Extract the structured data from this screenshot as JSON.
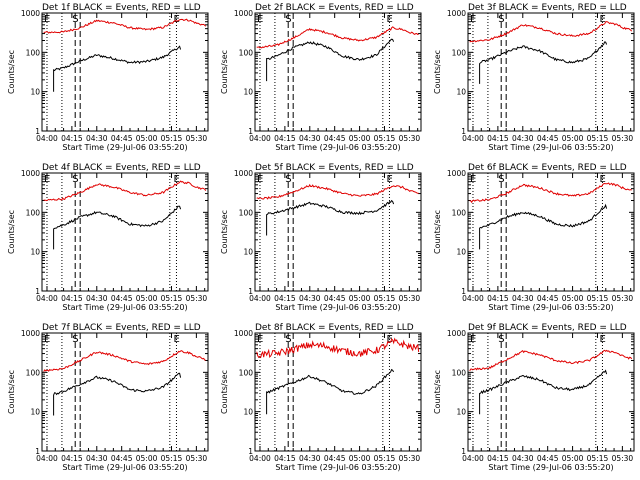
{
  "figure": {
    "time_ticks": [
      "04:00",
      "04:15",
      "04:30",
      "04:45",
      "05:00",
      "05:15",
      "05:30"
    ],
    "y_ticks": [
      "1",
      "10",
      "100",
      "1000"
    ],
    "xlabel": "Start Time (29-Jul-06 03:55:20)",
    "ylabel": "Counts/sec",
    "colors": {
      "events": "#000000",
      "lld": "#e00000"
    }
  },
  "chart_data": [
    {
      "type": "line",
      "title": "Det 1f BLACK = Events, RED = LLD",
      "xlabel": "Start Time (29-Jul-06 03:55:20)",
      "ylabel": "Counts/sec",
      "x_range": [
        "03:57",
        "05:37"
      ],
      "y_scale": "log",
      "ylim": [
        1,
        1000
      ],
      "markers": [
        {
          "label": "E",
          "time": "04:00",
          "style": "dotted"
        },
        {
          "label": "",
          "time": "04:09",
          "style": "dotted"
        },
        {
          "label": "S",
          "time": "04:17",
          "style": "dashed"
        },
        {
          "label": "",
          "time": "04:20",
          "style": "dashed"
        },
        {
          "label": "",
          "time": "05:14",
          "style": "dotted"
        },
        {
          "label": "E",
          "time": "05:18",
          "style": "dotted"
        }
      ],
      "series": [
        {
          "name": "Events",
          "color": "#000000",
          "start": "04:04",
          "end": "05:21",
          "x": [
            "04:04",
            "04:10",
            "04:20",
            "04:30",
            "04:40",
            "04:50",
            "05:00",
            "05:10",
            "05:20",
            "05:21"
          ],
          "y": [
            35,
            40,
            60,
            85,
            70,
            55,
            58,
            75,
            140,
            95
          ]
        },
        {
          "name": "LLD",
          "color": "#e00000",
          "start": "03:58",
          "end": "05:36",
          "x": [
            "03:58",
            "04:10",
            "04:20",
            "04:30",
            "04:40",
            "04:50",
            "05:00",
            "05:10",
            "05:20",
            "05:26",
            "05:30",
            "05:36"
          ],
          "y": [
            320,
            330,
            420,
            640,
            560,
            420,
            380,
            430,
            700,
            650,
            550,
            480
          ]
        }
      ]
    },
    {
      "type": "line",
      "title": "Det 2f BLACK = Events, RED = LLD",
      "xlabel": "Start Time (29-Jul-06 03:55:20)",
      "ylabel": "Counts/sec",
      "x_range": [
        "03:57",
        "05:37"
      ],
      "y_scale": "log",
      "ylim": [
        1,
        1000
      ],
      "markers": [
        {
          "label": "E",
          "time": "04:00",
          "style": "dotted"
        },
        {
          "label": "",
          "time": "04:09",
          "style": "dotted"
        },
        {
          "label": "S",
          "time": "04:17",
          "style": "dashed"
        },
        {
          "label": "",
          "time": "04:20",
          "style": "dashed"
        },
        {
          "label": "",
          "time": "05:14",
          "style": "dotted"
        },
        {
          "label": "E",
          "time": "05:18",
          "style": "dotted"
        }
      ],
      "series": [
        {
          "name": "Events",
          "color": "#000000",
          "start": "04:04",
          "end": "05:21",
          "x": [
            "04:04",
            "04:10",
            "04:20",
            "04:30",
            "04:40",
            "04:50",
            "05:00",
            "05:10",
            "05:20",
            "05:21"
          ],
          "y": [
            65,
            80,
            130,
            180,
            140,
            80,
            65,
            85,
            230,
            150
          ]
        },
        {
          "name": "LLD",
          "color": "#e00000",
          "start": "03:58",
          "end": "05:36",
          "x": [
            "03:58",
            "04:10",
            "04:20",
            "04:30",
            "04:40",
            "04:50",
            "05:00",
            "05:10",
            "05:20",
            "05:26",
            "05:30",
            "05:36"
          ],
          "y": [
            130,
            150,
            230,
            390,
            320,
            230,
            200,
            240,
            420,
            380,
            320,
            280
          ]
        }
      ]
    },
    {
      "type": "line",
      "title": "Det 3f BLACK = Events, RED = LLD",
      "xlabel": "Start Time (29-Jul-06 03:55:20)",
      "ylabel": "Counts/sec",
      "x_range": [
        "03:57",
        "05:37"
      ],
      "y_scale": "log",
      "ylim": [
        1,
        1000
      ],
      "markers": [
        {
          "label": "E",
          "time": "04:00",
          "style": "dotted"
        },
        {
          "label": "",
          "time": "04:09",
          "style": "dotted"
        },
        {
          "label": "S",
          "time": "04:17",
          "style": "dashed"
        },
        {
          "label": "",
          "time": "04:20",
          "style": "dashed"
        },
        {
          "label": "",
          "time": "05:14",
          "style": "dotted"
        },
        {
          "label": "E",
          "time": "05:18",
          "style": "dotted"
        }
      ],
      "series": [
        {
          "name": "Events",
          "color": "#000000",
          "start": "04:04",
          "end": "05:21",
          "x": [
            "04:04",
            "04:10",
            "04:20",
            "04:30",
            "04:40",
            "04:50",
            "05:00",
            "05:10",
            "05:20",
            "05:21"
          ],
          "y": [
            55,
            65,
            100,
            140,
            110,
            65,
            55,
            70,
            190,
            120
          ]
        },
        {
          "name": "LLD",
          "color": "#e00000",
          "start": "03:58",
          "end": "05:36",
          "x": [
            "03:58",
            "04:10",
            "04:20",
            "04:30",
            "04:40",
            "04:50",
            "05:00",
            "05:10",
            "05:20",
            "05:26",
            "05:30",
            "05:36"
          ],
          "y": [
            190,
            210,
            300,
            500,
            420,
            300,
            260,
            300,
            580,
            520,
            430,
            360
          ]
        }
      ]
    },
    {
      "type": "line",
      "title": "Det 4f BLACK = Events, RED = LLD",
      "xlabel": "Start Time (29-Jul-06 03:55:20)",
      "ylabel": "Counts/sec",
      "x_range": [
        "03:57",
        "05:37"
      ],
      "y_scale": "log",
      "ylim": [
        1,
        1000
      ],
      "markers": [
        {
          "label": "E",
          "time": "04:00",
          "style": "dotted"
        },
        {
          "label": "",
          "time": "04:09",
          "style": "dotted"
        },
        {
          "label": "S",
          "time": "04:17",
          "style": "dashed"
        },
        {
          "label": "",
          "time": "04:20",
          "style": "dashed"
        },
        {
          "label": "",
          "time": "05:14",
          "style": "dotted"
        },
        {
          "label": "E",
          "time": "05:18",
          "style": "dotted"
        }
      ],
      "series": [
        {
          "name": "Events",
          "color": "#000000",
          "start": "04:04",
          "end": "05:21",
          "x": [
            "04:04",
            "04:10",
            "04:20",
            "04:30",
            "04:40",
            "04:50",
            "05:00",
            "05:10",
            "05:20",
            "05:21"
          ],
          "y": [
            40,
            48,
            75,
            100,
            80,
            50,
            45,
            60,
            150,
            100
          ]
        },
        {
          "name": "LLD",
          "color": "#e00000",
          "start": "03:58",
          "end": "05:36",
          "x": [
            "03:58",
            "04:10",
            "04:20",
            "04:30",
            "04:40",
            "04:50",
            "05:00",
            "05:10",
            "05:20",
            "05:26",
            "05:30",
            "05:36"
          ],
          "y": [
            200,
            220,
            320,
            520,
            440,
            320,
            270,
            320,
            600,
            540,
            440,
            370
          ]
        }
      ]
    },
    {
      "type": "line",
      "title": "Det 5f BLACK = Events, RED = LLD",
      "xlabel": "Start Time (29-Jul-06 03:55:20)",
      "ylabel": "Counts/sec",
      "x_range": [
        "03:57",
        "05:37"
      ],
      "y_scale": "log",
      "ylim": [
        1,
        1000
      ],
      "markers": [
        {
          "label": "E",
          "time": "04:00",
          "style": "dotted"
        },
        {
          "label": "",
          "time": "04:09",
          "style": "dotted"
        },
        {
          "label": "S",
          "time": "04:17",
          "style": "dashed"
        },
        {
          "label": "",
          "time": "04:20",
          "style": "dashed"
        },
        {
          "label": "",
          "time": "05:14",
          "style": "dotted"
        },
        {
          "label": "E",
          "time": "05:18",
          "style": "dotted"
        }
      ],
      "series": [
        {
          "name": "Events",
          "color": "#000000",
          "start": "04:04",
          "end": "05:21",
          "x": [
            "04:04",
            "04:10",
            "04:20",
            "04:30",
            "04:40",
            "04:50",
            "05:00",
            "05:10",
            "05:20",
            "05:21"
          ],
          "y": [
            90,
            100,
            130,
            170,
            140,
            100,
            95,
            110,
            200,
            150
          ]
        },
        {
          "name": "LLD",
          "color": "#e00000",
          "start": "03:58",
          "end": "05:36",
          "x": [
            "03:58",
            "04:10",
            "04:20",
            "04:30",
            "04:40",
            "04:50",
            "05:00",
            "05:10",
            "05:20",
            "05:26",
            "05:30",
            "05:36"
          ],
          "y": [
            220,
            240,
            330,
            480,
            400,
            300,
            260,
            290,
            480,
            430,
            350,
            300
          ]
        }
      ]
    },
    {
      "type": "line",
      "title": "Det 6f BLACK = Events, RED = LLD",
      "xlabel": "Start Time (29-Jul-06 03:55:20)",
      "ylabel": "Counts/sec",
      "x_range": [
        "03:57",
        "05:37"
      ],
      "y_scale": "log",
      "ylim": [
        1,
        1000
      ],
      "markers": [
        {
          "label": "E",
          "time": "04:00",
          "style": "dotted"
        },
        {
          "label": "",
          "time": "04:09",
          "style": "dotted"
        },
        {
          "label": "S",
          "time": "04:17",
          "style": "dashed"
        },
        {
          "label": "",
          "time": "04:20",
          "style": "dashed"
        },
        {
          "label": "",
          "time": "05:14",
          "style": "dotted"
        },
        {
          "label": "E",
          "time": "05:18",
          "style": "dotted"
        }
      ],
      "series": [
        {
          "name": "Events",
          "color": "#000000",
          "start": "04:04",
          "end": "05:21",
          "x": [
            "04:04",
            "04:10",
            "04:20",
            "04:30",
            "04:40",
            "04:50",
            "05:00",
            "05:10",
            "05:20",
            "05:21"
          ],
          "y": [
            40,
            48,
            75,
            100,
            80,
            50,
            45,
            60,
            150,
            100
          ]
        },
        {
          "name": "LLD",
          "color": "#e00000",
          "start": "03:58",
          "end": "05:36",
          "x": [
            "03:58",
            "04:10",
            "04:20",
            "04:30",
            "04:40",
            "04:50",
            "05:00",
            "05:10",
            "05:20",
            "05:26",
            "05:30",
            "05:36"
          ],
          "y": [
            190,
            210,
            300,
            500,
            420,
            300,
            260,
            300,
            560,
            500,
            420,
            350
          ]
        }
      ]
    },
    {
      "type": "line",
      "title": "Det 7f BLACK = Events, RED = LLD",
      "xlabel": "Start Time (29-Jul-06 03:55:20)",
      "ylabel": "Counts/sec",
      "x_range": [
        "03:57",
        "05:37"
      ],
      "y_scale": "log",
      "ylim": [
        1,
        1000
      ],
      "markers": [
        {
          "label": "E",
          "time": "04:00",
          "style": "dotted"
        },
        {
          "label": "",
          "time": "04:09",
          "style": "dotted"
        },
        {
          "label": "S",
          "time": "04:17",
          "style": "dashed"
        },
        {
          "label": "",
          "time": "04:20",
          "style": "dashed"
        },
        {
          "label": "",
          "time": "05:14",
          "style": "dotted"
        },
        {
          "label": "E",
          "time": "05:18",
          "style": "dotted"
        }
      ],
      "series": [
        {
          "name": "Events",
          "color": "#000000",
          "start": "04:04",
          "end": "05:21",
          "x": [
            "04:04",
            "04:10",
            "04:20",
            "04:30",
            "04:40",
            "04:50",
            "05:00",
            "05:10",
            "05:20",
            "05:21"
          ],
          "y": [
            28,
            33,
            50,
            75,
            60,
            36,
            33,
            42,
            95,
            65
          ]
        },
        {
          "name": "LLD",
          "color": "#e00000",
          "start": "03:58",
          "end": "05:36",
          "x": [
            "03:58",
            "04:10",
            "04:20",
            "04:30",
            "04:40",
            "04:50",
            "05:00",
            "05:10",
            "05:20",
            "05:26",
            "05:30",
            "05:36"
          ],
          "y": [
            110,
            125,
            200,
            330,
            270,
            190,
            160,
            190,
            350,
            310,
            250,
            210
          ]
        }
      ]
    },
    {
      "type": "line",
      "title": "Det 8f BLACK = Events, RED = LLD",
      "xlabel": "Start Time (29-Jul-06 03:55:20)",
      "ylabel": "Counts/sec",
      "x_range": [
        "03:57",
        "05:37"
      ],
      "y_scale": "log",
      "ylim": [
        1,
        1000
      ],
      "markers": [
        {
          "label": "E",
          "time": "04:00",
          "style": "dotted"
        },
        {
          "label": "",
          "time": "04:09",
          "style": "dotted"
        },
        {
          "label": "S",
          "time": "04:17",
          "style": "dashed"
        },
        {
          "label": "",
          "time": "04:20",
          "style": "dashed"
        },
        {
          "label": "",
          "time": "05:14",
          "style": "dotted"
        },
        {
          "label": "E",
          "time": "05:18",
          "style": "dotted"
        }
      ],
      "series": [
        {
          "name": "Events",
          "color": "#000000",
          "start": "04:04",
          "end": "05:21",
          "x": [
            "04:04",
            "04:10",
            "04:20",
            "04:30",
            "04:40",
            "04:50",
            "05:00",
            "05:10",
            "05:20",
            "05:21"
          ],
          "y": [
            30,
            38,
            55,
            80,
            55,
            33,
            28,
            45,
            120,
            80
          ]
        },
        {
          "name": "LLD",
          "color": "#e00000",
          "start": "03:58",
          "end": "05:36",
          "x": [
            "03:58",
            "04:10",
            "04:20",
            "04:30",
            "04:40",
            "04:50",
            "05:00",
            "05:10",
            "05:20",
            "05:26",
            "05:30",
            "05:36"
          ],
          "y": [
            280,
            300,
            380,
            500,
            460,
            350,
            300,
            360,
            600,
            520,
            450,
            400
          ]
        }
      ]
    },
    {
      "type": "line",
      "title": "Det 9f BLACK = Events, RED = LLD",
      "xlabel": "Start Time (29-Jul-06 03:55:20)",
      "ylabel": "Counts/sec",
      "x_range": [
        "03:57",
        "05:37"
      ],
      "y_scale": "log",
      "ylim": [
        1,
        1000
      ],
      "markers": [
        {
          "label": "E",
          "time": "04:00",
          "style": "dotted"
        },
        {
          "label": "",
          "time": "04:09",
          "style": "dotted"
        },
        {
          "label": "S",
          "time": "04:17",
          "style": "dashed"
        },
        {
          "label": "",
          "time": "04:20",
          "style": "dashed"
        },
        {
          "label": "",
          "time": "05:14",
          "style": "dotted"
        },
        {
          "label": "E",
          "time": "05:18",
          "style": "dotted"
        }
      ],
      "series": [
        {
          "name": "Events",
          "color": "#000000",
          "start": "04:04",
          "end": "05:21",
          "x": [
            "04:04",
            "04:10",
            "04:20",
            "04:30",
            "04:40",
            "04:50",
            "05:00",
            "05:10",
            "05:20",
            "05:21"
          ],
          "y": [
            30,
            36,
            55,
            80,
            65,
            40,
            36,
            48,
            110,
            75
          ]
        },
        {
          "name": "LLD",
          "color": "#e00000",
          "start": "03:58",
          "end": "05:36",
          "x": [
            "03:58",
            "04:10",
            "04:20",
            "04:30",
            "04:40",
            "04:50",
            "05:00",
            "05:10",
            "05:20",
            "05:26",
            "05:30",
            "05:36"
          ],
          "y": [
            115,
            130,
            210,
            340,
            280,
            200,
            170,
            200,
            360,
            320,
            260,
            220
          ]
        }
      ]
    }
  ]
}
